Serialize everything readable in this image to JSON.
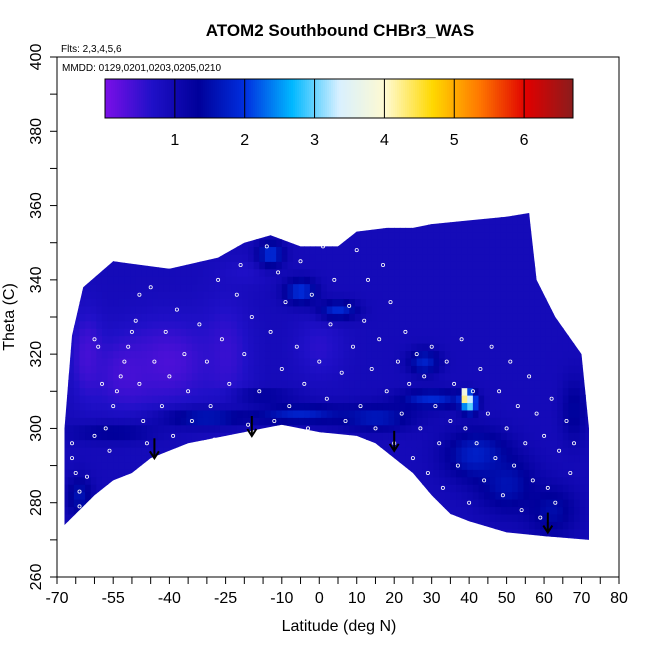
{
  "chart_data": {
    "type": "heatmap",
    "title": "ATOM2 Southbound CHBr3_WAS",
    "subtitle_flights": "Flts: 2,3,4,5,6",
    "subtitle_dates": "MMDD: 0129,0201,0203,0205,0210",
    "xlabel": "Latitude (deg N)",
    "ylabel": "Theta (C)",
    "xlim": [
      -70,
      80
    ],
    "ylim": [
      260,
      400
    ],
    "x_tick_labels": [
      "-70",
      "-55",
      "-40",
      "-25",
      "-10",
      "0",
      "10",
      "20",
      "30",
      "40",
      "50",
      "60",
      "70",
      "80"
    ],
    "y_tick_labels": [
      "260",
      "280",
      "300",
      "320",
      "340",
      "360",
      "380",
      "400"
    ],
    "colorbar": {
      "range": [
        0,
        6.7
      ],
      "tick_labels": [
        "1",
        "2",
        "3",
        "4",
        "5",
        "6"
      ],
      "colors": [
        "#7b0fe8",
        "#2010c8",
        "#00009a",
        "#0030e0",
        "#00b8ff",
        "#d8f0ff",
        "#fffad0",
        "#ffd800",
        "#ff7800",
        "#e00000",
        "#8b1c1c"
      ]
    },
    "top_boundary": [
      [
        -68,
        300
      ],
      [
        -66,
        325
      ],
      [
        -63,
        338
      ],
      [
        -55,
        345
      ],
      [
        -40,
        343
      ],
      [
        -27,
        346
      ],
      [
        -20,
        350
      ],
      [
        -13,
        352
      ],
      [
        -5,
        349
      ],
      [
        5,
        349
      ],
      [
        10,
        353
      ],
      [
        18,
        354
      ],
      [
        25,
        354
      ],
      [
        30,
        355
      ],
      [
        40,
        356
      ],
      [
        50,
        357
      ],
      [
        56,
        358
      ],
      [
        58,
        340
      ],
      [
        63,
        330
      ],
      [
        70,
        320
      ],
      [
        72,
        300
      ],
      [
        72,
        270
      ]
    ],
    "bottom_boundary": [
      [
        -68,
        274
      ],
      [
        -60,
        282
      ],
      [
        -55,
        286
      ],
      [
        -50,
        288
      ],
      [
        -45,
        292
      ],
      [
        -35,
        296
      ],
      [
        -25,
        298
      ],
      [
        -15,
        300
      ],
      [
        -10,
        301
      ],
      [
        0,
        299
      ],
      [
        10,
        298
      ],
      [
        15,
        296
      ],
      [
        20,
        292
      ],
      [
        25,
        288
      ],
      [
        30,
        282
      ],
      [
        35,
        277
      ],
      [
        40,
        275
      ],
      [
        50,
        272
      ],
      [
        60,
        271
      ],
      [
        72,
        270
      ]
    ],
    "base_level": 0.9,
    "features": [
      {
        "x": -52,
        "y": 315,
        "rx": 10,
        "ry": 12,
        "value": 0.4
      },
      {
        "x": -40,
        "y": 318,
        "rx": 14,
        "ry": 14,
        "value": 0.35
      },
      {
        "x": -25,
        "y": 320,
        "rx": 8,
        "ry": 18,
        "value": 0.5
      },
      {
        "x": -62,
        "y": 320,
        "rx": 5,
        "ry": 14,
        "value": 0.4
      },
      {
        "x": -20,
        "y": 342,
        "rx": 8,
        "ry": 4,
        "value": 0.7
      },
      {
        "x": 0,
        "y": 322,
        "rx": 8,
        "ry": 10,
        "value": 0.6
      },
      {
        "x": -13,
        "y": 347,
        "rx": 4,
        "ry": 4,
        "value": 2.0
      },
      {
        "x": -5,
        "y": 337,
        "rx": 5,
        "ry": 4,
        "value": 2.0
      },
      {
        "x": 5,
        "y": 332,
        "rx": 6,
        "ry": 3,
        "value": 1.9
      },
      {
        "x": -55,
        "y": 299,
        "rx": 14,
        "ry": 3,
        "value": 1.4
      },
      {
        "x": -30,
        "y": 303,
        "rx": 14,
        "ry": 3,
        "value": 1.7
      },
      {
        "x": -5,
        "y": 304,
        "rx": 14,
        "ry": 3,
        "value": 1.8
      },
      {
        "x": 15,
        "y": 303,
        "rx": 12,
        "ry": 4,
        "value": 1.7
      },
      {
        "x": -15,
        "y": 309,
        "rx": 10,
        "ry": 2,
        "value": 1.4
      },
      {
        "x": 30,
        "y": 308,
        "rx": 10,
        "ry": 3,
        "value": 1.9
      },
      {
        "x": 28,
        "y": 318,
        "rx": 5,
        "ry": 4,
        "value": 1.8
      },
      {
        "x": 42,
        "y": 293,
        "rx": 10,
        "ry": 8,
        "value": 1.8
      },
      {
        "x": 50,
        "y": 285,
        "rx": 9,
        "ry": 9,
        "value": 1.6
      },
      {
        "x": 62,
        "y": 278,
        "rx": 8,
        "ry": 8,
        "value": 1.5
      },
      {
        "x": 68,
        "y": 305,
        "rx": 4,
        "ry": 10,
        "value": 1.4
      },
      {
        "x": -64,
        "y": 282,
        "rx": 4,
        "ry": 6,
        "value": 1.6
      },
      {
        "x": 40,
        "y": 307,
        "rx": 2.5,
        "ry": 3,
        "value": 3.3
      },
      {
        "x": 39,
        "y": 309,
        "rx": 1.2,
        "ry": 1.5,
        "value": 6.0
      }
    ],
    "sample_points": [
      [
        -66,
        296
      ],
      [
        -66,
        292
      ],
      [
        -65,
        288
      ],
      [
        -64,
        283
      ],
      [
        -64,
        279
      ],
      [
        -62,
        287
      ],
      [
        -60,
        298
      ],
      [
        -60,
        324
      ],
      [
        -59,
        322
      ],
      [
        -58,
        312
      ],
      [
        -57,
        300
      ],
      [
        -56,
        294
      ],
      [
        -55,
        306
      ],
      [
        -54,
        310
      ],
      [
        -53,
        314
      ],
      [
        -52,
        318
      ],
      [
        -51,
        322
      ],
      [
        -50,
        326
      ],
      [
        -49,
        329
      ],
      [
        -48,
        336
      ],
      [
        -48,
        312
      ],
      [
        -47,
        302
      ],
      [
        -46,
        296
      ],
      [
        -45,
        338
      ],
      [
        -44,
        318
      ],
      [
        -42,
        306
      ],
      [
        -41,
        326
      ],
      [
        -40,
        314
      ],
      [
        -39,
        298
      ],
      [
        -38,
        332
      ],
      [
        -36,
        320
      ],
      [
        -35,
        310
      ],
      [
        -34,
        302
      ],
      [
        -32,
        328
      ],
      [
        -30,
        318
      ],
      [
        -29,
        306
      ],
      [
        -28,
        297
      ],
      [
        -27,
        340
      ],
      [
        -26,
        324
      ],
      [
        -24,
        312
      ],
      [
        -22,
        336
      ],
      [
        -21,
        344
      ],
      [
        -20,
        320
      ],
      [
        -19,
        301
      ],
      [
        -18,
        330
      ],
      [
        -16,
        310
      ],
      [
        -14,
        349
      ],
      [
        -13,
        326
      ],
      [
        -12,
        302
      ],
      [
        -11,
        342
      ],
      [
        -10,
        316
      ],
      [
        -9,
        334
      ],
      [
        -8,
        306
      ],
      [
        -6,
        322
      ],
      [
        -5,
        345
      ],
      [
        -4,
        312
      ],
      [
        -3,
        300
      ],
      [
        -2,
        336
      ],
      [
        0,
        318
      ],
      [
        1,
        349
      ],
      [
        2,
        308
      ],
      [
        3,
        328
      ],
      [
        4,
        340
      ],
      [
        6,
        315
      ],
      [
        7,
        302
      ],
      [
        8,
        333
      ],
      [
        9,
        322
      ],
      [
        10,
        348
      ],
      [
        11,
        306
      ],
      [
        12,
        329
      ],
      [
        13,
        340
      ],
      [
        14,
        316
      ],
      [
        15,
        300
      ],
      [
        16,
        324
      ],
      [
        17,
        344
      ],
      [
        18,
        310
      ],
      [
        19,
        334
      ],
      [
        20,
        296
      ],
      [
        21,
        318
      ],
      [
        22,
        304
      ],
      [
        23,
        326
      ],
      [
        24,
        312
      ],
      [
        25,
        292
      ],
      [
        26,
        320
      ],
      [
        27,
        300
      ],
      [
        28,
        314
      ],
      [
        29,
        288
      ],
      [
        30,
        322
      ],
      [
        31,
        306
      ],
      [
        32,
        296
      ],
      [
        33,
        284
      ],
      [
        34,
        318
      ],
      [
        35,
        302
      ],
      [
        36,
        312
      ],
      [
        37,
        290
      ],
      [
        38,
        324
      ],
      [
        39,
        300
      ],
      [
        40,
        280
      ],
      [
        41,
        310
      ],
      [
        42,
        296
      ],
      [
        43,
        316
      ],
      [
        44,
        286
      ],
      [
        45,
        304
      ],
      [
        46,
        322
      ],
      [
        47,
        292
      ],
      [
        48,
        310
      ],
      [
        49,
        282
      ],
      [
        50,
        300
      ],
      [
        51,
        318
      ],
      [
        52,
        290
      ],
      [
        53,
        306
      ],
      [
        54,
        278
      ],
      [
        55,
        296
      ],
      [
        56,
        314
      ],
      [
        57,
        286
      ],
      [
        58,
        304
      ],
      [
        59,
        276
      ],
      [
        60,
        298
      ],
      [
        61,
        284
      ],
      [
        62,
        308
      ],
      [
        63,
        280
      ],
      [
        64,
        294
      ],
      [
        66,
        302
      ],
      [
        67,
        288
      ],
      [
        68,
        296
      ]
    ],
    "arrows": [
      [
        -44,
        296
      ],
      [
        -18,
        302
      ],
      [
        20,
        298
      ],
      [
        61,
        276
      ]
    ]
  }
}
